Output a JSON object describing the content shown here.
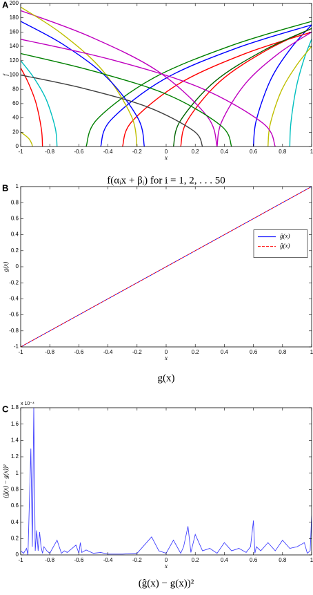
{
  "chart_data": [
    {
      "type": "line",
      "panel_label": "A",
      "title": "f(αᵢx + βᵢ) for i = 1, 2, . . . 50",
      "xlabel": "x",
      "ylabel": "f",
      "xlim": [
        -1,
        1
      ],
      "ylim": [
        0,
        200
      ],
      "xticks": [
        -1,
        -0.8,
        -0.6,
        -0.4,
        -0.2,
        0,
        0.2,
        0.4,
        0.6,
        0.8,
        1
      ],
      "yticks": [
        0,
        20,
        40,
        60,
        80,
        100,
        120,
        140,
        160,
        180,
        200
      ],
      "smooth": true,
      "series": [
        {
          "color": "#0000ff",
          "x": [
            0.6,
            0.62,
            0.72,
            0.86,
            1
          ],
          "values": [
            0,
            37,
            94,
            138,
            170
          ]
        },
        {
          "color": "#ff0000",
          "x": [
            0.1,
            0.145,
            0.37,
            0.685,
            1
          ],
          "values": [
            0,
            36,
            91,
            134,
            165
          ]
        },
        {
          "color": "#008000",
          "x": [
            -0.55,
            -0.47,
            -0.085,
            0.46,
            1
          ],
          "values": [
            0,
            39,
            96,
            142,
            175
          ]
        },
        {
          "color": "#0000ff",
          "x": [
            -0.45,
            -0.38,
            -0.015,
            0.49,
            1
          ],
          "values": [
            0,
            37,
            94,
            138,
            170
          ]
        },
        {
          "color": "#ff0000",
          "x": [
            -0.3,
            -0.235,
            0.09,
            0.545,
            1
          ],
          "values": [
            0,
            35,
            88,
            130,
            160
          ]
        },
        {
          "color": "#00bfbf",
          "x": [
            0.85,
            0.8575,
            0.895,
            0.9475,
            1
          ],
          "values": [
            0,
            33,
            83,
            122,
            150
          ]
        },
        {
          "color": "#bfbf00",
          "x": [
            0.7,
            0.715,
            0.79,
            0.895,
            1
          ],
          "values": [
            0,
            31,
            77,
            113,
            140
          ]
        },
        {
          "color": "#bf00bf",
          "x": [
            0.35,
            0.3825,
            0.545,
            0.7725,
            1
          ],
          "values": [
            0,
            35,
            88,
            130,
            160
          ]
        },
        {
          "color": "#006400",
          "x": [
            0.05,
            0.0975,
            0.335,
            0.6675,
            1
          ],
          "values": [
            0,
            36,
            91,
            134,
            165
          ]
        },
        {
          "color": "#bf00bf",
          "x": [
            -1,
            -0.5275,
            -0.055,
            0.2825,
            0.35
          ],
          "values": [
            190,
            154,
            105,
            42,
            0
          ]
        },
        {
          "color": "#bfbf00",
          "x": [
            -1,
            -0.72,
            -0.44,
            -0.24,
            -0.2
          ],
          "values": [
            195,
            158,
            107,
            43,
            0
          ]
        },
        {
          "color": "#0000ff",
          "x": [
            -1,
            -0.7025,
            -0.405,
            -0.1925,
            -0.15
          ],
          "values": [
            175,
            142,
            96,
            39,
            0
          ]
        },
        {
          "color": "#ff0000",
          "x": [
            -1,
            -0.9475,
            -0.895,
            -0.8575,
            -0.85
          ],
          "values": [
            110,
            89,
            61,
            24,
            0
          ]
        },
        {
          "color": "#00bfbf",
          "x": [
            -1,
            -0.9125,
            -0.825,
            -0.7625,
            -0.75
          ],
          "values": [
            120,
            97,
            66,
            26,
            0
          ]
        },
        {
          "color": "#008000",
          "x": [
            -1,
            -0.4925,
            0.015,
            0.3775,
            0.45
          ],
          "values": [
            130,
            105,
            72,
            29,
            0
          ]
        },
        {
          "color": "#404040",
          "x": [
            -1,
            -0.5625,
            -0.125,
            0.1875,
            0.25
          ],
          "values": [
            100,
            81,
            55,
            22,
            0
          ]
        },
        {
          "color": "#bf00bf",
          "x": [
            -1,
            -0.3875,
            0.225,
            0.6625,
            0.75
          ],
          "values": [
            150,
            122,
            83,
            33,
            0
          ]
        },
        {
          "color": "#bfbf00",
          "x": [
            -1,
            -0.972,
            -0.944,
            -0.924,
            -0.92
          ],
          "values": [
            20,
            16,
            11,
            4,
            0
          ]
        }
      ]
    },
    {
      "type": "line",
      "panel_label": "B",
      "title": "g(x)",
      "xlabel": "x",
      "ylabel": "g(x)",
      "xlim": [
        -1,
        1
      ],
      "ylim": [
        -1,
        1
      ],
      "xticks": [
        -1,
        -0.8,
        -0.6,
        -0.4,
        -0.2,
        0,
        0.2,
        0.4,
        0.6,
        0.8,
        1
      ],
      "yticks": [
        -1,
        -0.8,
        -0.6,
        -0.4,
        -0.2,
        0,
        0.2,
        0.4,
        0.6,
        0.8,
        1
      ],
      "legend": "right",
      "x": [
        -1,
        1
      ],
      "series": [
        {
          "name": "ĝ(x)",
          "color": "#0000ff",
          "dash": false,
          "values": [
            -1,
            1
          ]
        },
        {
          "name": "ĝ(x)",
          "color": "#ff0000",
          "dash": true,
          "values": [
            -1,
            1
          ]
        }
      ]
    },
    {
      "type": "line",
      "panel_label": "C",
      "title": "(ĝ(x) − g(x))²",
      "xlabel": "x",
      "ylabel": "(ĝ(x) − g(x))²",
      "multiplier": "x 10⁻⁴",
      "xlim": [
        -1,
        1
      ],
      "ylim": [
        0,
        1.8
      ],
      "xticks": [
        -1,
        -0.8,
        -0.6,
        -0.4,
        -0.2,
        0,
        0.2,
        0.4,
        0.6,
        0.8,
        1
      ],
      "yticks": [
        0,
        0.2,
        0.4,
        0.6,
        0.8,
        1,
        1.2,
        1.4,
        1.6,
        1.8
      ],
      "x": [
        -1,
        -0.98,
        -0.96,
        -0.95,
        -0.93,
        -0.92,
        -0.91,
        -0.9,
        -0.89,
        -0.88,
        -0.87,
        -0.86,
        -0.85,
        -0.84,
        -0.82,
        -0.8,
        -0.75,
        -0.72,
        -0.7,
        -0.68,
        -0.62,
        -0.6,
        -0.59,
        -0.58,
        -0.55,
        -0.5,
        -0.45,
        -0.4,
        -0.3,
        -0.2,
        -0.1,
        -0.05,
        0,
        0.05,
        0.1,
        0.12,
        0.15,
        0.17,
        0.2,
        0.25,
        0.3,
        0.35,
        0.4,
        0.45,
        0.5,
        0.55,
        0.58,
        0.6,
        0.61,
        0.62,
        0.65,
        0.7,
        0.75,
        0.8,
        0.85,
        0.9,
        0.95,
        0.97,
        0.99,
        1
      ],
      "series": [
        {
          "color": "#4040ff",
          "values": [
            0.05,
            0.02,
            0.08,
            0,
            1.3,
            0.1,
            1.8,
            0.05,
            0.3,
            0.05,
            0.28,
            0.1,
            0.02,
            0.1,
            0.05,
            0.02,
            0.18,
            0.02,
            0.05,
            0.03,
            0.12,
            0.02,
            0.15,
            0.03,
            0.06,
            0.02,
            0.03,
            0.01,
            0.01,
            0.02,
            0.22,
            0.05,
            0.02,
            0.18,
            0.02,
            0.1,
            0.35,
            0.03,
            0.25,
            0.05,
            0.08,
            0.02,
            0.15,
            0.05,
            0.08,
            0.03,
            0.1,
            0.42,
            0.02,
            0.1,
            0.05,
            0.15,
            0.05,
            0.18,
            0.08,
            0.1,
            0.15,
            0.02,
            0.05,
            0.48
          ]
        }
      ]
    }
  ]
}
